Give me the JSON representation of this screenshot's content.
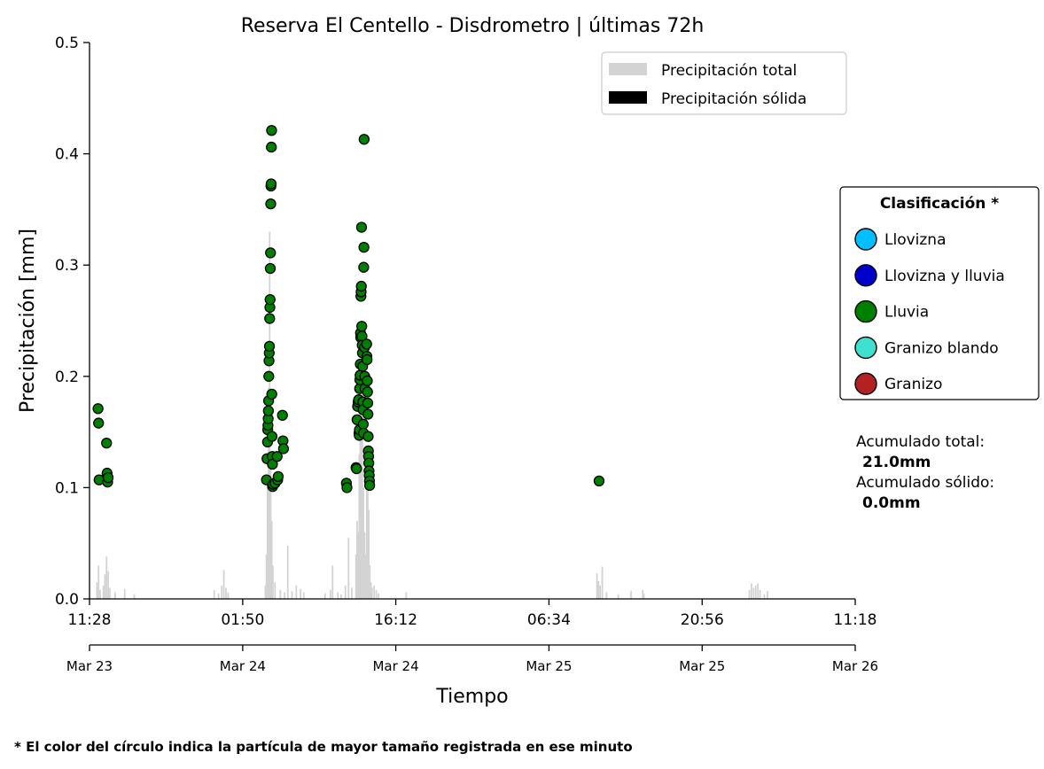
{
  "chart_data": {
    "type": "scatter",
    "title": "Reserva El Centello - Disdrometro  |  últimas 72h",
    "xlabel": "Tiempo",
    "ylabel": "Precipitación [mm]",
    "ylim": [
      0,
      0.5
    ],
    "y_ticks": [
      "0.0",
      "0.1",
      "0.2",
      "0.3",
      "0.4",
      "0.5"
    ],
    "x_ticks": [
      {
        "hours": 0,
        "time": "11:28",
        "date": "Mar 23"
      },
      {
        "hours": 14.37,
        "time": "01:50",
        "date": "Mar 24"
      },
      {
        "hours": 28.73,
        "time": "16:12",
        "date": "Mar 24"
      },
      {
        "hours": 43.1,
        "time": "06:34",
        "date": "Mar 25"
      },
      {
        "hours": 57.47,
        "time": "20:56",
        "date": "Mar 25"
      },
      {
        "hours": 71.83,
        "time": "11:18",
        "date": "Mar 26"
      }
    ],
    "xlim_hours": [
      0,
      71.83
    ],
    "legend": {
      "placement": "top-right",
      "entries": [
        {
          "label": "Precipitación total",
          "color": "#d3d3d3"
        },
        {
          "label": "Precipitación sólida",
          "color": "#000000"
        }
      ]
    },
    "classification": {
      "title": "Clasificación *",
      "entries": [
        {
          "label": "Llovizna",
          "color": "#00bfff"
        },
        {
          "label": "Llovizna y lluvia",
          "color": "#0000cd"
        },
        {
          "label": "Lluvia",
          "color": "#008000"
        },
        {
          "label": "Granizo blando",
          "color": "#40e0d0"
        },
        {
          "label": "Granizo",
          "color": "#b22222"
        }
      ]
    },
    "accumulated": {
      "total_label": "Acumulado total:",
      "total_value": "21.0mm",
      "solid_label": "Acumulado sólido:",
      "solid_value": "0.0mm"
    },
    "footnote": "* El color del círculo indica la partícula de mayor tamaño registrada en ese minuto",
    "bars_total": [
      [
        0.7,
        0.015
      ],
      [
        0.85,
        0.03
      ],
      [
        1.0,
        0.008
      ],
      [
        1.3,
        0.012
      ],
      [
        1.45,
        0.022
      ],
      [
        1.6,
        0.038
      ],
      [
        1.75,
        0.025
      ],
      [
        1.9,
        0.01
      ],
      [
        2.4,
        0.006
      ],
      [
        3.3,
        0.009
      ],
      [
        4.2,
        0.004
      ],
      [
        11.7,
        0.008
      ],
      [
        12.1,
        0.005
      ],
      [
        12.4,
        0.012
      ],
      [
        12.6,
        0.026
      ],
      [
        12.8,
        0.01
      ],
      [
        13.0,
        0.006
      ],
      [
        16.5,
        0.012
      ],
      [
        16.6,
        0.04
      ],
      [
        16.7,
        0.11
      ],
      [
        16.8,
        0.19
      ],
      [
        16.9,
        0.33
      ],
      [
        17.0,
        0.12
      ],
      [
        17.1,
        0.07
      ],
      [
        17.2,
        0.03
      ],
      [
        17.4,
        0.015
      ],
      [
        17.9,
        0.008
      ],
      [
        18.3,
        0.006
      ],
      [
        18.6,
        0.048
      ],
      [
        19.0,
        0.007
      ],
      [
        19.4,
        0.012
      ],
      [
        19.8,
        0.009
      ],
      [
        20.1,
        0.006
      ],
      [
        22.1,
        0.005
      ],
      [
        22.6,
        0.008
      ],
      [
        22.8,
        0.03
      ],
      [
        23.3,
        0.006
      ],
      [
        23.6,
        0.004
      ],
      [
        24.0,
        0.012
      ],
      [
        24.3,
        0.055
      ],
      [
        24.6,
        0.01
      ],
      [
        25.0,
        0.04
      ],
      [
        25.1,
        0.07
      ],
      [
        25.2,
        0.06
      ],
      [
        25.3,
        0.13
      ],
      [
        25.4,
        0.2
      ],
      [
        25.5,
        0.16
      ],
      [
        25.6,
        0.24
      ],
      [
        25.7,
        0.1
      ],
      [
        25.8,
        0.06
      ],
      [
        25.9,
        0.04
      ],
      [
        26.0,
        0.12
      ],
      [
        26.1,
        0.13
      ],
      [
        26.2,
        0.08
      ],
      [
        26.3,
        0.03
      ],
      [
        26.4,
        0.015
      ],
      [
        26.5,
        0.01
      ],
      [
        26.7,
        0.012
      ],
      [
        26.9,
        0.008
      ],
      [
        27.1,
        0.005
      ],
      [
        29.7,
        0.006
      ],
      [
        47.6,
        0.023
      ],
      [
        47.75,
        0.016
      ],
      [
        47.9,
        0.012
      ],
      [
        48.1,
        0.029
      ],
      [
        48.5,
        0.006
      ],
      [
        49.6,
        0.004
      ],
      [
        50.8,
        0.007
      ],
      [
        51.9,
        0.008
      ],
      [
        52.0,
        0.005
      ],
      [
        61.9,
        0.008
      ],
      [
        62.1,
        0.014
      ],
      [
        62.3,
        0.01
      ],
      [
        62.5,
        0.012
      ],
      [
        62.7,
        0.014
      ],
      [
        62.9,
        0.008
      ],
      [
        63.3,
        0.004
      ],
      [
        63.6,
        0.007
      ]
    ],
    "bars_solid": [],
    "series": [
      {
        "category": "Lluvia",
        "color": "#008000",
        "points": [
          [
            0.8,
            0.171
          ],
          [
            0.85,
            0.158
          ],
          [
            0.9,
            0.107
          ],
          [
            1.6,
            0.14
          ],
          [
            1.65,
            0.113
          ],
          [
            1.7,
            0.105
          ],
          [
            1.75,
            0.109
          ],
          [
            16.6,
            0.107
          ],
          [
            16.65,
            0.126
          ],
          [
            16.7,
            0.141
          ],
          [
            16.72,
            0.152
          ],
          [
            16.74,
            0.156
          ],
          [
            16.76,
            0.162
          ],
          [
            16.78,
            0.169
          ],
          [
            16.8,
            0.178
          ],
          [
            16.82,
            0.2
          ],
          [
            16.84,
            0.214
          ],
          [
            16.86,
            0.221
          ],
          [
            16.88,
            0.227
          ],
          [
            16.9,
            0.252
          ],
          [
            16.92,
            0.262
          ],
          [
            16.94,
            0.269
          ],
          [
            16.96,
            0.297
          ],
          [
            16.98,
            0.311
          ],
          [
            17.0,
            0.355
          ],
          [
            17.02,
            0.371
          ],
          [
            17.04,
            0.373
          ],
          [
            17.06,
            0.406
          ],
          [
            17.08,
            0.421
          ],
          [
            17.1,
            0.184
          ],
          [
            17.12,
            0.146
          ],
          [
            17.14,
            0.128
          ],
          [
            17.16,
            0.121
          ],
          [
            17.18,
            0.101
          ],
          [
            17.2,
            0.103
          ],
          [
            17.4,
            0.104
          ],
          [
            17.6,
            0.128
          ],
          [
            17.65,
            0.107
          ],
          [
            17.7,
            0.11
          ],
          [
            18.1,
            0.165
          ],
          [
            18.15,
            0.142
          ],
          [
            18.2,
            0.135
          ],
          [
            24.1,
            0.104
          ],
          [
            24.15,
            0.1
          ],
          [
            25.0,
            0.118
          ],
          [
            25.05,
            0.117
          ],
          [
            25.1,
            0.161
          ],
          [
            25.15,
            0.173
          ],
          [
            25.2,
            0.177
          ],
          [
            25.25,
            0.179
          ],
          [
            25.28,
            0.149
          ],
          [
            25.3,
            0.147
          ],
          [
            25.32,
            0.152
          ],
          [
            25.34,
            0.189
          ],
          [
            25.36,
            0.197
          ],
          [
            25.38,
            0.201
          ],
          [
            25.4,
            0.211
          ],
          [
            25.42,
            0.239
          ],
          [
            25.44,
            0.235
          ],
          [
            25.46,
            0.272
          ],
          [
            25.48,
            0.276
          ],
          [
            25.5,
            0.281
          ],
          [
            25.52,
            0.334
          ],
          [
            25.54,
            0.245
          ],
          [
            25.56,
            0.236
          ],
          [
            25.58,
            0.228
          ],
          [
            25.6,
            0.221
          ],
          [
            25.62,
            0.209
          ],
          [
            25.64,
            0.177
          ],
          [
            25.66,
            0.17
          ],
          [
            25.68,
            0.157
          ],
          [
            25.7,
            0.149
          ],
          [
            25.72,
            0.298
          ],
          [
            25.74,
            0.316
          ],
          [
            25.76,
            0.413
          ],
          [
            25.8,
            0.226
          ],
          [
            25.82,
            0.2
          ],
          [
            25.84,
            0.189
          ],
          [
            26.0,
            0.229
          ],
          [
            26.02,
            0.218
          ],
          [
            26.04,
            0.215
          ],
          [
            26.06,
            0.196
          ],
          [
            26.08,
            0.186
          ],
          [
            26.1,
            0.176
          ],
          [
            26.12,
            0.166
          ],
          [
            26.14,
            0.146
          ],
          [
            26.16,
            0.133
          ],
          [
            26.18,
            0.128
          ],
          [
            26.2,
            0.122
          ],
          [
            26.22,
            0.115
          ],
          [
            26.24,
            0.111
          ],
          [
            26.26,
            0.106
          ],
          [
            26.28,
            0.102
          ],
          [
            47.8,
            0.106
          ]
        ]
      }
    ]
  }
}
